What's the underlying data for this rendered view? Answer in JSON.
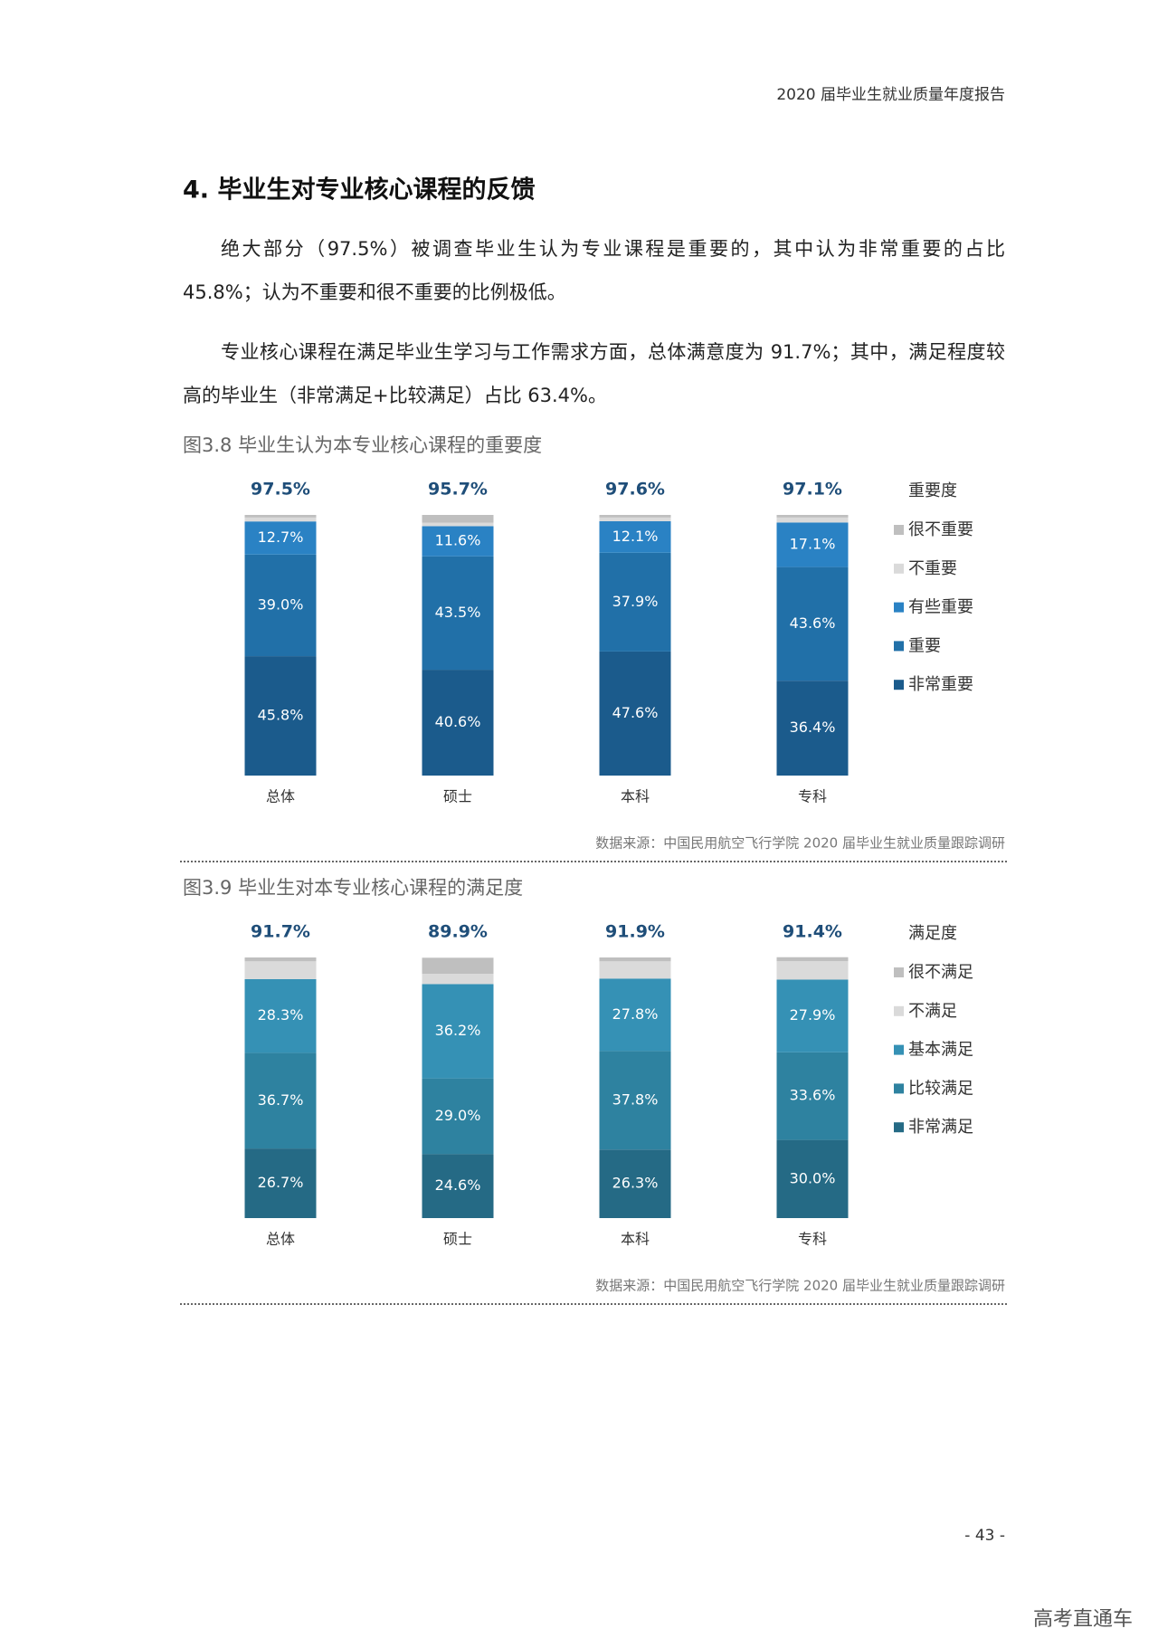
{
  "header": "2020 届毕业生就业质量年度报告",
  "heading": "4. 毕业生对专业核心课程的反馈",
  "paragraphs": [
    "绝大部分（97.5%）被调查毕业生认为专业课程是重要的，其中认为非常重要的占比45.8%；认为不重要和很不重要的比例极低。",
    "专业核心课程在满足毕业生学习与工作需求方面，总体满意度为 91.7%；其中，满足程度较高的毕业生（非常满足+比较满足）占比 63.4%。"
  ],
  "chart_data": [
    {
      "type": "stacked_bar",
      "title": "图3.8 毕业生认为本专业核心课程的重要度",
      "legend_title": "重要度",
      "categories": [
        "总体",
        "硕士",
        "本科",
        "专科"
      ],
      "ylim": [
        0,
        100
      ],
      "totals": {
        "values": [
          97.5,
          95.7,
          97.6,
          97.1
        ],
        "value_labels": [
          "97.5%",
          "95.7%",
          "97.6%",
          "97.1%"
        ]
      },
      "series": [
        {
          "name": "非常重要",
          "color": "#1b5b8c",
          "values": [
            45.8,
            40.6,
            47.6,
            36.4
          ],
          "value_labels": [
            "45.8%",
            "40.6%",
            "47.6%",
            "36.4%"
          ]
        },
        {
          "name": "重要",
          "color": "#2170a8",
          "values": [
            39.0,
            43.5,
            37.9,
            43.6
          ],
          "value_labels": [
            "39.0%",
            "43.5%",
            "37.9%",
            "43.6%"
          ]
        },
        {
          "name": "有些重要",
          "color": "#2a82c4",
          "values": [
            12.7,
            11.6,
            12.1,
            17.1
          ],
          "value_labels": [
            "12.7%",
            "11.6%",
            "12.1%",
            "17.1%"
          ]
        },
        {
          "name": "不重要",
          "color": "#dadada",
          "values": [
            1.5,
            1.3,
            1.4,
            1.9
          ]
        },
        {
          "name": "很不重要",
          "color": "#bfbfbf",
          "values": [
            1.0,
            3.0,
            1.0,
            1.0
          ]
        }
      ],
      "source": "数据来源：中国民用航空飞行学院 2020 届毕业生就业质量跟踪调研"
    },
    {
      "type": "stacked_bar",
      "title": "图3.9 毕业生对本专业核心课程的满足度",
      "legend_title": "满足度",
      "categories": [
        "总体",
        "硕士",
        "本科",
        "专科"
      ],
      "ylim": [
        0,
        100
      ],
      "totals": {
        "values": [
          91.7,
          89.9,
          91.9,
          91.4
        ],
        "value_labels": [
          "91.7%",
          "89.9%",
          "91.9%",
          "91.4%"
        ]
      },
      "series": [
        {
          "name": "非常满足",
          "color": "#256a85",
          "values": [
            26.7,
            24.6,
            26.3,
            30.0
          ],
          "value_labels": [
            "26.7%",
            "24.6%",
            "26.3%",
            "30.0%"
          ]
        },
        {
          "name": "比较满足",
          "color": "#2e82a0",
          "values": [
            36.7,
            29.0,
            37.8,
            33.6
          ],
          "value_labels": [
            "36.7%",
            "29.0%",
            "37.8%",
            "33.6%"
          ]
        },
        {
          "name": "基本满足",
          "color": "#3591b5",
          "values": [
            28.3,
            36.2,
            27.8,
            27.9
          ],
          "value_labels": [
            "28.3%",
            "36.2%",
            "27.8%",
            "27.9%"
          ]
        },
        {
          "name": "不满足",
          "color": "#dadada",
          "values": [
            6.8,
            3.9,
            6.6,
            7.1
          ]
        },
        {
          "name": "很不满足",
          "color": "#bfbfbf",
          "values": [
            1.5,
            6.2,
            1.5,
            1.5
          ]
        }
      ],
      "source": "数据来源：中国民用航空飞行学院 2020 届毕业生就业质量跟踪调研"
    }
  ],
  "page_number": "- 43 -",
  "watermark": "高考直通车"
}
